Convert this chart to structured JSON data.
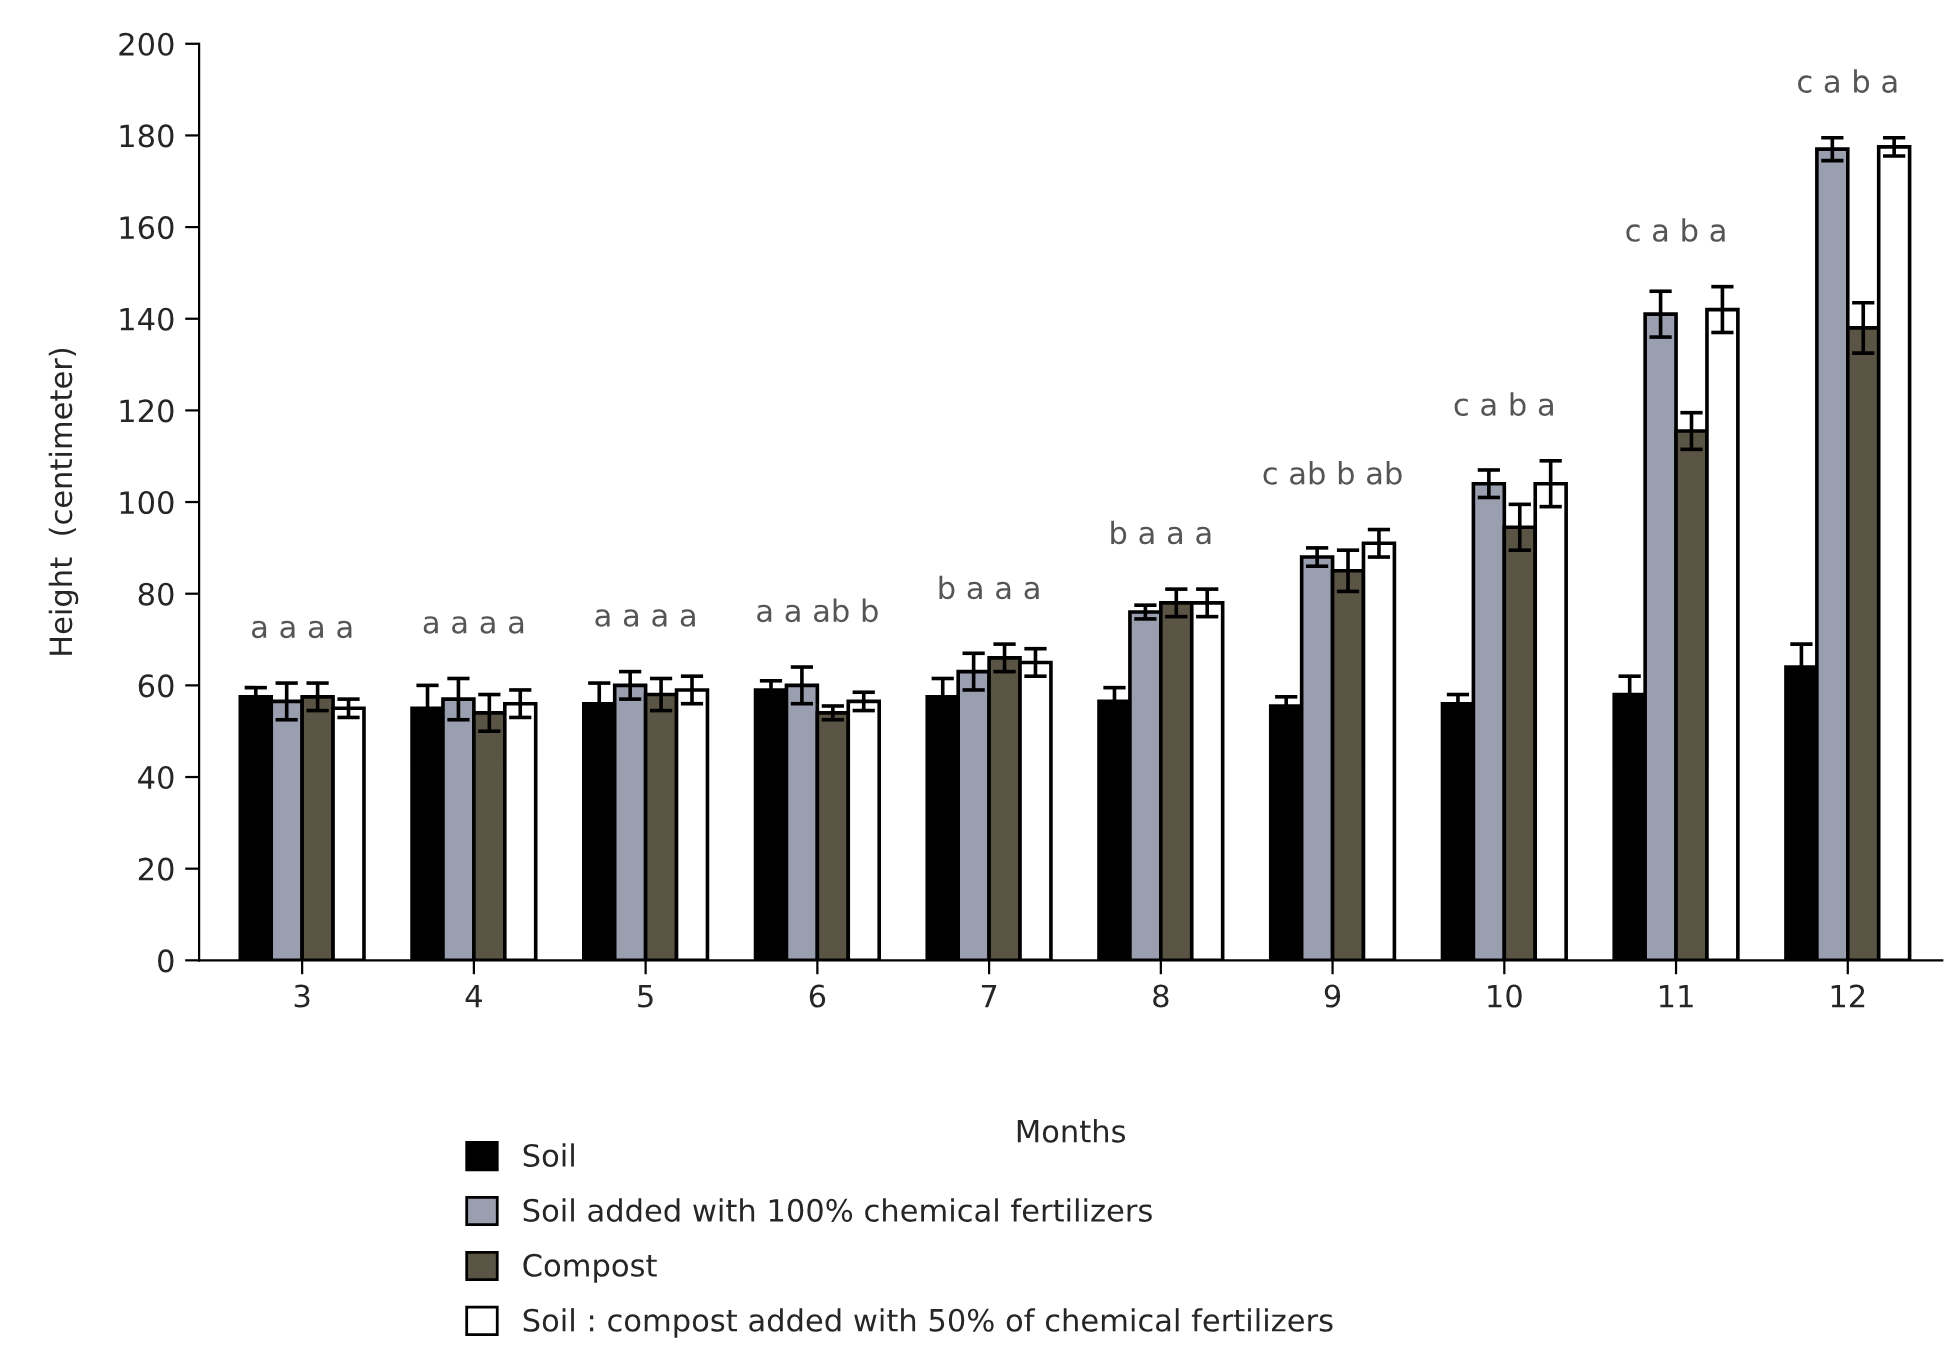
{
  "chart_data": {
    "type": "bar",
    "xlabel": "Months",
    "ylabel": "Height  (centimeter)",
    "categories": [
      "3",
      "4",
      "5",
      "6",
      "7",
      "8",
      "9",
      "10",
      "11",
      "12"
    ],
    "series": [
      {
        "name": "Soil",
        "color": "#000000",
        "values": [
          57.5,
          55,
          56,
          59,
          57.5,
          56.5,
          55.5,
          56,
          58,
          64
        ],
        "errors": [
          2,
          5,
          4.5,
          2,
          4,
          3,
          2,
          2,
          4,
          5
        ]
      },
      {
        "name": "Soil added with 100% chemical fertilizers",
        "color": "#9a9fb0",
        "values": [
          56.5,
          57,
          60,
          60,
          63,
          76,
          88,
          104,
          141,
          177
        ],
        "errors": [
          4,
          4.5,
          3,
          4,
          4,
          1.5,
          2,
          3,
          5,
          2.5
        ]
      },
      {
        "name": "Compost",
        "color": "#5a5444",
        "values": [
          57.5,
          54,
          58,
          54,
          66,
          78,
          85,
          94.5,
          115.5,
          138
        ],
        "errors": [
          3,
          4,
          3.5,
          1.5,
          3,
          3,
          4.5,
          5,
          4,
          5.5
        ]
      },
      {
        "name": "Soil : compost added with 50% of chemical fertilizers",
        "color": "#ffffff",
        "values": [
          55,
          56,
          59,
          56.5,
          65,
          78,
          91,
          104,
          142,
          177.5
        ],
        "errors": [
          2,
          3,
          3,
          2,
          3,
          3,
          3,
          5,
          5,
          2
        ]
      }
    ],
    "ylim": [
      0,
      200
    ],
    "yticks": [
      0,
      20,
      40,
      60,
      80,
      100,
      120,
      140,
      160,
      180,
      200
    ],
    "grid": false,
    "legend": "bottom",
    "annotations": [
      "a a a a",
      "a a a a",
      "a a a a",
      "a a ab b",
      "b a a a",
      "b a a a",
      "c ab b ab",
      "c a b a",
      "c a b a",
      "c a b a"
    ]
  }
}
